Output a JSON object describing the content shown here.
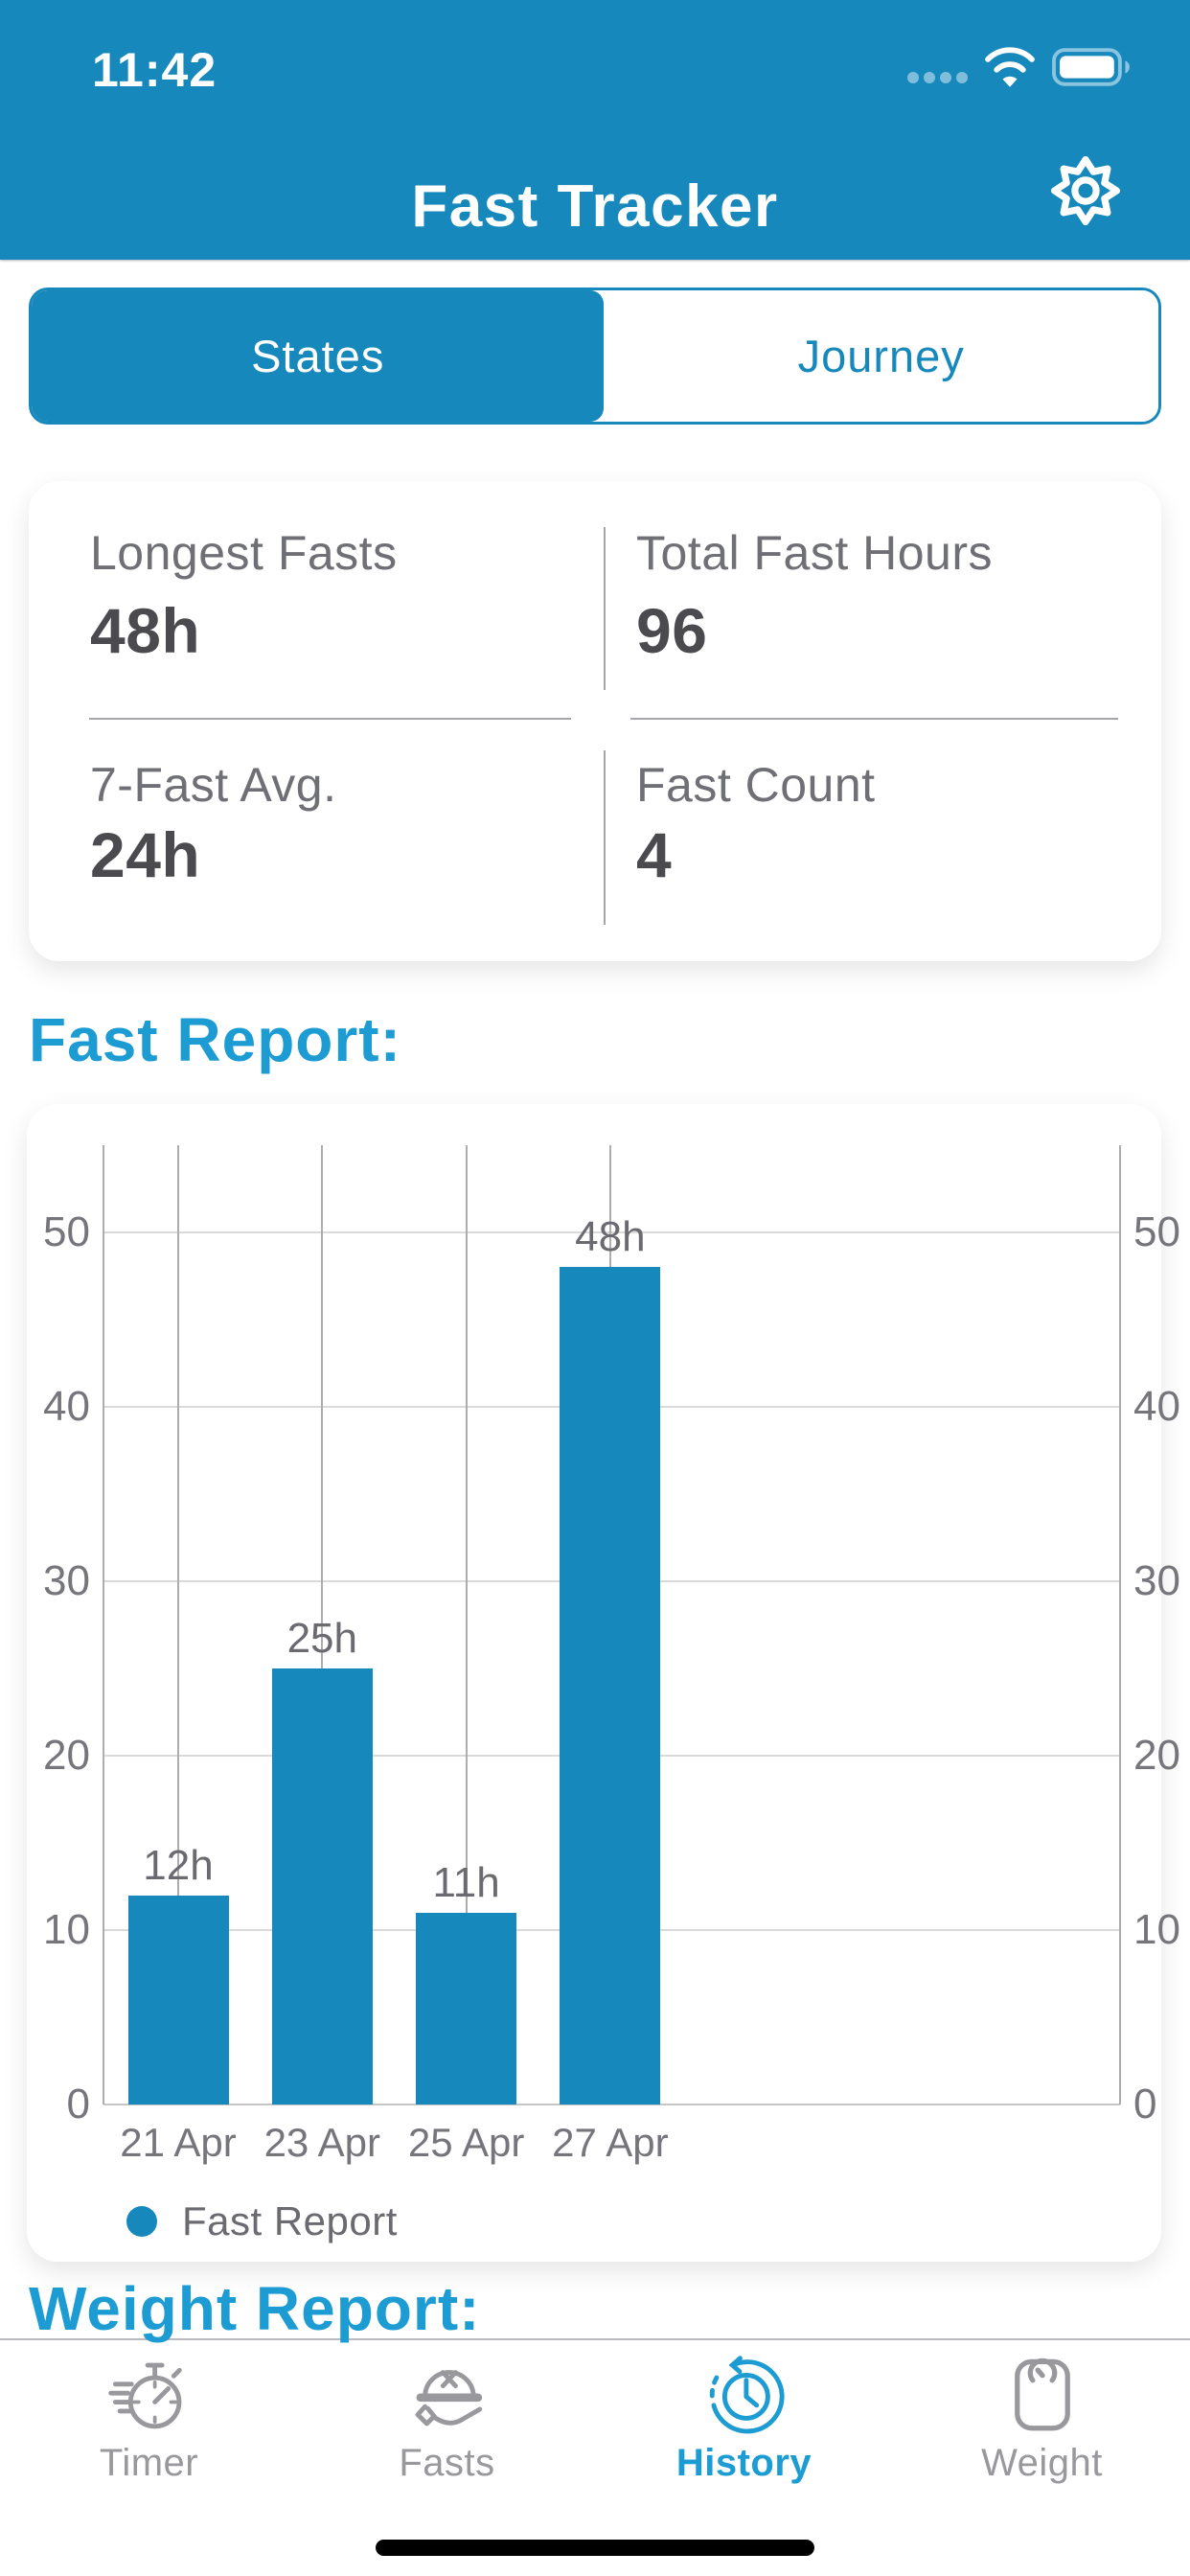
{
  "status_bar": {
    "time": "11:42",
    "signal_icon": "signal-dots-icon",
    "wifi_icon": "wifi-icon",
    "battery_icon": "battery-icon"
  },
  "header": {
    "title": "Fast Tracker",
    "settings_icon": "gear-icon"
  },
  "segmented_control": {
    "options": [
      {
        "label": "States",
        "active": true
      },
      {
        "label": "Journey",
        "active": false
      }
    ]
  },
  "stats_card": {
    "items": [
      {
        "label": "Longest Fasts",
        "value": "48h"
      },
      {
        "label": "Total Fast Hours",
        "value": "96"
      },
      {
        "label": "7-Fast Avg.",
        "value": "24h"
      },
      {
        "label": "Fast Count",
        "value": "4"
      }
    ]
  },
  "sections": {
    "fast_report_heading": "Fast Report:",
    "weight_report_heading": "Weight Report:"
  },
  "chart_data": {
    "type": "bar",
    "title": "Fast Report",
    "categories": [
      "21 Apr",
      "23 Apr",
      "25 Apr",
      "27 Apr"
    ],
    "values": [
      12,
      25,
      11,
      48
    ],
    "bar_labels": [
      "12h",
      "25h",
      "11h",
      "48h"
    ],
    "y_ticks": [
      0,
      10,
      20,
      30,
      40,
      50
    ],
    "ylim": [
      0,
      55
    ],
    "y_axis_sides": "both",
    "grid": true,
    "bar_color": "#1688BC",
    "legend": {
      "label": "Fast Report",
      "position": "bottom-left",
      "marker_color": "#1688BC"
    }
  },
  "tab_bar": {
    "items": [
      {
        "label": "Timer",
        "icon": "stopwatch-icon",
        "active": false
      },
      {
        "label": "Fasts",
        "icon": "cloche-icon",
        "active": false
      },
      {
        "label": "History",
        "icon": "history-clock-icon",
        "active": true
      },
      {
        "label": "Weight",
        "icon": "scale-icon",
        "active": false
      }
    ]
  },
  "colors": {
    "primary": "#1688BC",
    "accent_heading": "#1D9CD3",
    "inactive_gray": "#98989D",
    "bar_color": "#1688BC",
    "grid_vertical": "#ADADAD",
    "grid_horizontal": "#DADADA",
    "axis_line": "#C6C6C6"
  }
}
